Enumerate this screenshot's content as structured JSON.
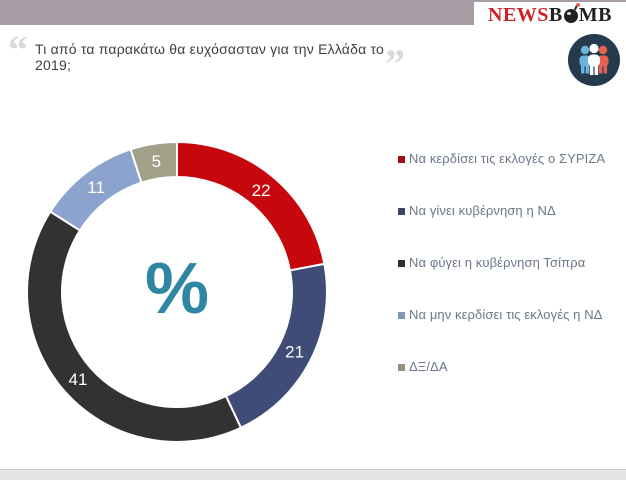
{
  "header": {
    "logo": {
      "news": "NEWS",
      "b": "B",
      "mb": "MB"
    }
  },
  "question": {
    "open_quote": "“",
    "text": "Τι από τα παρακάτω θα ευχόσασταν για την Ελλάδα το 2019;",
    "close_quote": "”"
  },
  "chart_data": {
    "type": "pie",
    "subtype": "donut",
    "center_label": "%",
    "start_angle_deg": 0,
    "direction": "clockwise",
    "legend_position": "right",
    "segments": [
      {
        "label": "Να κερδίσει τις εκλογές ο ΣΥΡΙΖΑ",
        "value": 22,
        "color": "#c7070e",
        "legend_color": "#a30d12"
      },
      {
        "label": "Να γίνει κυβέρνηση η ΝΔ",
        "value": 21,
        "color": "#3e4c77",
        "legend_color": "#3a4568"
      },
      {
        "label": "Να φύγει η κυβέρνηση Τσίπρα",
        "value": 41,
        "color": "#333233",
        "legend_color": "#302f30"
      },
      {
        "label": "Να μην κερδίσει τις εκλογές η ΝΔ",
        "value": 11,
        "color": "#8ba3cd",
        "legend_color": "#7e95bd"
      },
      {
        "label": "ΔΞ/ΔΑ",
        "value": 5,
        "color": "#a3a089",
        "legend_color": "#949174"
      }
    ]
  },
  "colors": {
    "topbar": "#a79ba4",
    "accent_teal": "#2e86a3",
    "quote_gray": "#d9d9d9",
    "question_text": "#3f3f3f",
    "legend_text": "#6a7888",
    "footer_bar": "#e3e3e3",
    "logo_red": "#cc2128",
    "logo_black": "#231f20",
    "icon_bg": "#263a4d",
    "icon_blue": "#6ab4e0",
    "icon_white": "#ffffff",
    "icon_coral": "#e8604f"
  }
}
